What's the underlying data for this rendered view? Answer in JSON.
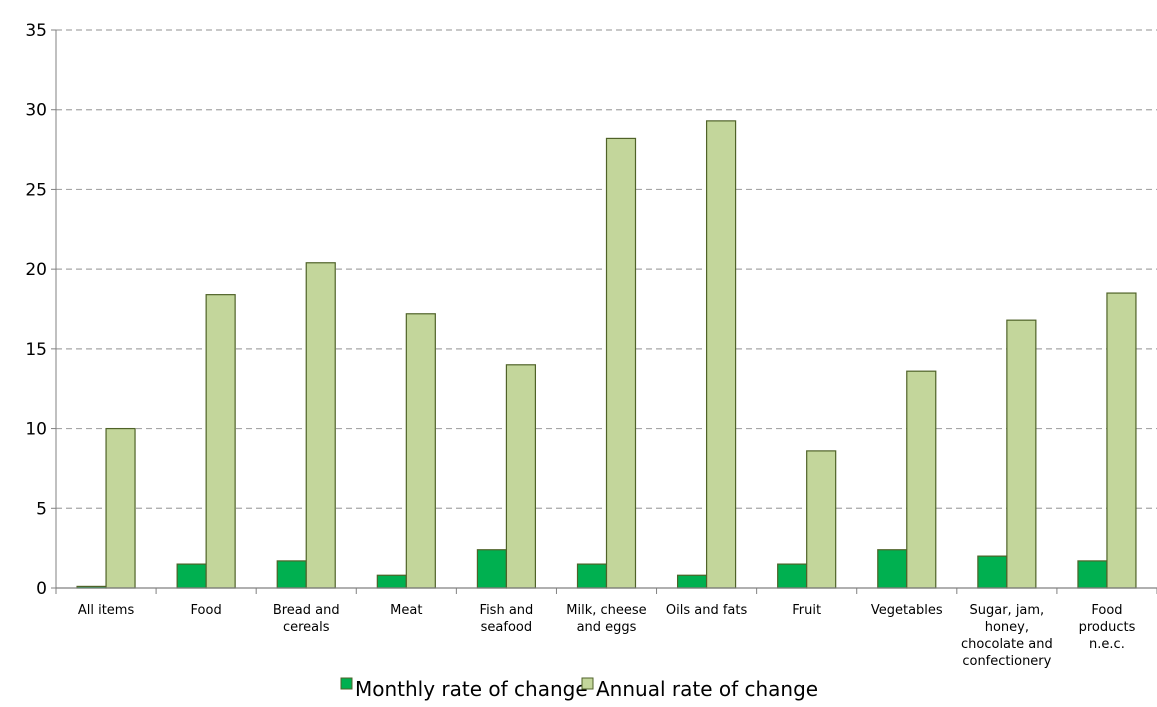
{
  "chart_data": {
    "type": "bar",
    "categories": [
      "All items",
      "Food",
      "Bread and cereals",
      "Meat",
      "Fish and seafood",
      "Milk, cheese and eggs",
      "Oils and fats",
      "Fruit",
      "Vegetables",
      "Sugar, jam, honey, chocolate and confectionery",
      "Food products n.e.c."
    ],
    "category_lines": [
      [
        "All items"
      ],
      [
        "Food"
      ],
      [
        "Bread and",
        "cereals"
      ],
      [
        "Meat"
      ],
      [
        "Fish and",
        "seafood"
      ],
      [
        "Milk, cheese",
        "and eggs"
      ],
      [
        "Oils and fats"
      ],
      [
        "Fruit"
      ],
      [
        "Vegetables"
      ],
      [
        "Sugar, jam,",
        "honey,",
        "chocolate and",
        "confectionery"
      ],
      [
        "Food",
        "products",
        "n.e.c."
      ]
    ],
    "series": [
      {
        "name": "Monthly rate of change",
        "color": "#00b050",
        "values": [
          0.1,
          1.5,
          1.7,
          0.8,
          2.4,
          1.5,
          0.8,
          1.5,
          2.4,
          2.0,
          1.7
        ]
      },
      {
        "name": "Annual rate of change",
        "color": "#c3d69b",
        "values": [
          10.0,
          18.4,
          20.4,
          17.2,
          14.0,
          28.2,
          29.3,
          8.6,
          13.6,
          16.8,
          18.5
        ]
      }
    ],
    "ylim": [
      0,
      35
    ],
    "yticks": [
      0,
      5,
      10,
      15,
      20,
      25,
      30,
      35
    ],
    "grid": true,
    "legend_position": "bottom",
    "bar_border_color": "#4f6228"
  }
}
